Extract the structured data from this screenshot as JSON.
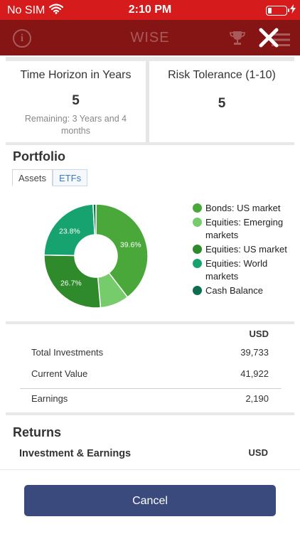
{
  "status_bar": {
    "carrier": "No SIM",
    "time": "2:10 PM"
  },
  "nav": {
    "title": "WISE",
    "icons": [
      "info-icon",
      "trophy-icon",
      "menu-icon",
      "close-icon"
    ]
  },
  "summary": {
    "time_horizon": {
      "label": "Time Horizon in Years",
      "value": "5",
      "note": "Remaining: 3 Years and 4 months"
    },
    "risk_tolerance": {
      "label": "Risk Tolerance (1-10)",
      "value": "5"
    }
  },
  "portfolio": {
    "title": "Portfolio",
    "tabs": [
      "Assets",
      "ETFs"
    ],
    "active_tab": "Assets",
    "legend": [
      {
        "label": "Bonds: US market",
        "color": "#4aa83a"
      },
      {
        "label": "Equities: Emerging markets",
        "color": "#76cc6a"
      },
      {
        "label": "Equities: US market",
        "color": "#2e8a2a"
      },
      {
        "label": "Equities: World markets",
        "color": "#16a370"
      },
      {
        "label": "Cash Balance",
        "color": "#0e6d4c"
      }
    ]
  },
  "chart_data": {
    "type": "pie",
    "categories": [
      "Bonds: US market",
      "Equities: Emerging markets",
      "Equities: US market",
      "Equities: World markets",
      "Cash Balance"
    ],
    "values": [
      39.6,
      9.0,
      26.7,
      23.8,
      0.9
    ],
    "data_labels": [
      "39.6%",
      "",
      "26.7%",
      "23.8%",
      ""
    ],
    "colors": [
      "#4aa83a",
      "#76cc6a",
      "#2e8a2a",
      "#16a370",
      "#0e6d4c"
    ],
    "donut": true
  },
  "investments": {
    "currency_header": "USD",
    "rows": [
      {
        "label": "Total Investments",
        "value": "39,733"
      },
      {
        "label": "Current Value",
        "value": "41,922"
      }
    ],
    "earnings": {
      "label": "Earnings",
      "value": "2,190"
    }
  },
  "returns": {
    "title": "Returns",
    "subheader": "Investment & Earnings",
    "currency_header": "USD"
  },
  "footer": {
    "cancel_label": "Cancel"
  }
}
